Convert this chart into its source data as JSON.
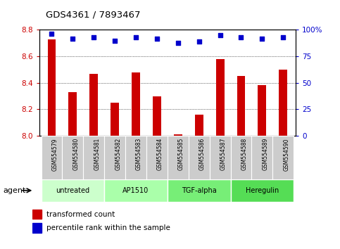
{
  "title": "GDS4361 / 7893467",
  "samples": [
    "GSM554579",
    "GSM554580",
    "GSM554581",
    "GSM554582",
    "GSM554583",
    "GSM554584",
    "GSM554585",
    "GSM554586",
    "GSM554587",
    "GSM554588",
    "GSM554589",
    "GSM554590"
  ],
  "bar_values": [
    8.73,
    8.33,
    8.47,
    8.25,
    8.48,
    8.3,
    8.01,
    8.16,
    8.58,
    8.45,
    8.38,
    8.5
  ],
  "percentile_values": [
    96,
    92,
    93,
    90,
    93,
    92,
    88,
    89,
    95,
    93,
    92,
    93
  ],
  "bar_color": "#cc0000",
  "dot_color": "#0000cc",
  "ylim_left": [
    8.0,
    8.8
  ],
  "ylim_right": [
    0,
    100
  ],
  "yticks_left": [
    8.0,
    8.2,
    8.4,
    8.6,
    8.8
  ],
  "yticks_right": [
    0,
    25,
    50,
    75,
    100
  ],
  "ytick_labels_right": [
    "0",
    "25",
    "50",
    "75",
    "100%"
  ],
  "groups": [
    {
      "label": "untreated",
      "start": 0,
      "end": 3
    },
    {
      "label": "AP1510",
      "start": 3,
      "end": 6
    },
    {
      "label": "TGF-alpha",
      "start": 6,
      "end": 9
    },
    {
      "label": "Heregulin",
      "start": 9,
      "end": 12
    }
  ],
  "group_colors": [
    "#ccffcc",
    "#aaffaa",
    "#77ee77",
    "#55dd55"
  ],
  "agent_label": "agent",
  "legend_bar_label": "transformed count",
  "legend_dot_label": "percentile rank within the sample",
  "label_area_color": "#cccccc",
  "bar_width": 0.4
}
